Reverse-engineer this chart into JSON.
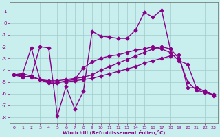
{
  "xlabel": "Windchill (Refroidissement éolien,°C)",
  "xlim": [
    -0.5,
    23.5
  ],
  "ylim": [
    -8.5,
    1.8
  ],
  "xticks": [
    0,
    1,
    2,
    3,
    4,
    5,
    6,
    7,
    8,
    9,
    10,
    11,
    12,
    13,
    14,
    15,
    16,
    17,
    18,
    19,
    20,
    21,
    22,
    23
  ],
  "yticks": [
    1,
    0,
    -1,
    -2,
    -3,
    -4,
    -5,
    -6,
    -7,
    -8
  ],
  "background_color": "#c8eeee",
  "grid_color": "#a0cccc",
  "line_color": "#880088",
  "line_width": 1.0,
  "marker": "D",
  "marker_size": 2.5,
  "lines": [
    {
      "x": [
        0,
        1,
        2,
        3,
        4,
        5,
        6,
        7,
        8,
        9,
        10,
        11,
        12,
        13,
        14,
        15,
        16,
        17,
        18,
        19,
        20,
        21,
        22,
        23
      ],
      "y": [
        -4.4,
        -4.3,
        -4.5,
        -2.0,
        -2.1,
        -7.9,
        -5.4,
        -7.3,
        -5.8,
        -0.7,
        -1.1,
        -1.2,
        -1.3,
        -1.3,
        -0.6,
        0.9,
        0.5,
        1.1,
        -2.2,
        null,
        null,
        null,
        null,
        null
      ]
    },
    {
      "x": [
        0,
        1,
        2,
        3,
        4,
        5,
        6,
        7,
        8,
        9,
        10,
        11,
        12,
        13,
        14,
        15,
        16,
        17,
        18,
        19,
        20,
        21,
        22,
        23
      ],
      "y": [
        -4.4,
        -4.6,
        -4.5,
        -4.8,
        -4.9,
        -4.9,
        -4.8,
        -4.7,
        -4.6,
        -4.4,
        -4.0,
        -3.7,
        -3.4,
        -3.1,
        -2.8,
        -2.5,
        -2.2,
        -2.0,
        -2.2,
        -3.0,
        -5.0,
        -5.7,
        -5.9,
        -6.1
      ]
    },
    {
      "x": [
        0,
        1,
        2,
        3,
        4,
        5,
        6,
        7,
        8,
        9,
        10,
        11,
        12,
        13,
        14,
        15,
        16,
        17,
        18,
        19,
        20,
        21,
        22,
        23
      ],
      "y": [
        -4.4,
        -4.5,
        -4.6,
        -4.8,
        -5.0,
        -5.0,
        -5.0,
        -4.9,
        -4.8,
        -4.7,
        -4.5,
        -4.3,
        -4.1,
        -3.9,
        -3.7,
        -3.4,
        -3.2,
        -3.0,
        -2.8,
        -2.7,
        -5.5,
        -5.5,
        -5.8,
        -6.1
      ]
    },
    {
      "x": [
        0,
        1,
        2,
        3,
        4,
        5,
        6,
        7,
        8,
        9,
        10,
        11,
        12,
        13,
        14,
        15,
        16,
        17,
        18,
        19,
        20,
        21,
        22,
        23
      ],
      "y": [
        -4.4,
        -4.3,
        -2.1,
        -4.8,
        -5.1,
        -5.1,
        -4.9,
        -4.8,
        -3.8,
        -3.3,
        -3.0,
        -2.8,
        -2.7,
        -2.5,
        -2.3,
        -2.2,
        -2.0,
        -2.2,
        -2.5,
        -3.2,
        -3.5,
        -5.5,
        -5.8,
        -6.2
      ]
    }
  ]
}
